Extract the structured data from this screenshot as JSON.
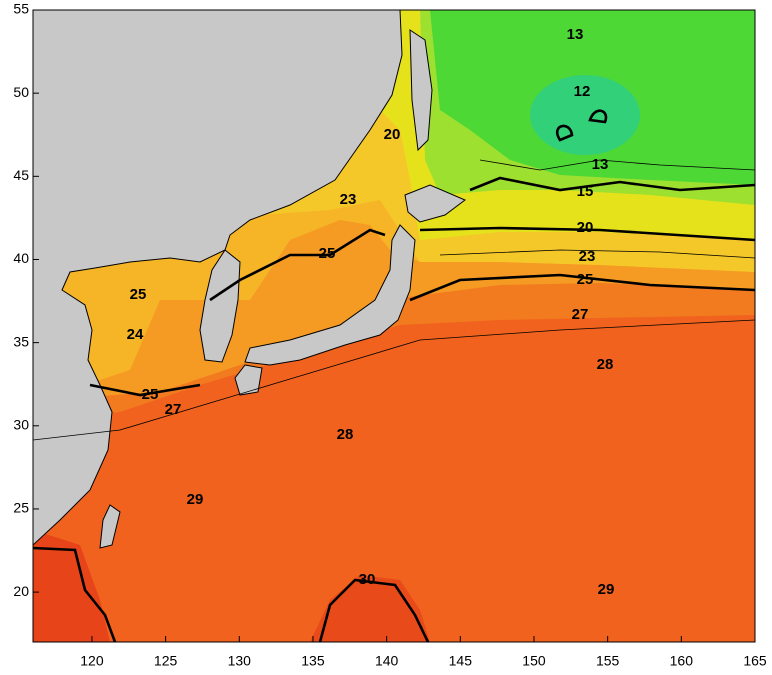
{
  "chart_data": {
    "type": "contour-map",
    "xlim": [
      116,
      165
    ],
    "ylim": [
      17,
      55
    ],
    "xticks": [
      120,
      125,
      130,
      135,
      140,
      145,
      150,
      155,
      160,
      165
    ],
    "yticks": [
      20,
      25,
      30,
      35,
      40,
      45,
      50,
      55
    ],
    "contour_labels": [
      13,
      12,
      13,
      15,
      20,
      23,
      20,
      23,
      25,
      25,
      25,
      24,
      27,
      28,
      25,
      27,
      28,
      29,
      30,
      29
    ]
  }
}
